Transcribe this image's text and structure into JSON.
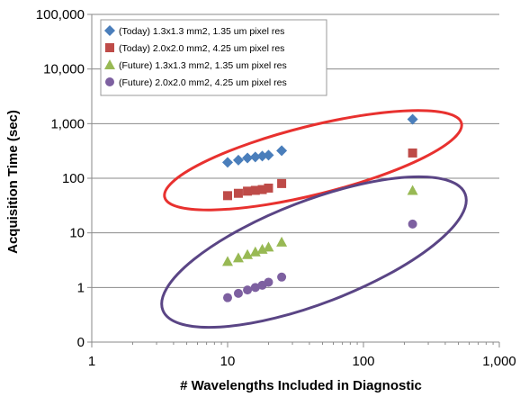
{
  "chart_data": {
    "type": "scatter",
    "xlabel": "# Wavelengths Included in Diagnostic",
    "ylabel": "Acquisition Time (sec)",
    "x_scale": "log",
    "y_scale": "log",
    "xlim": [
      1,
      1000
    ],
    "ylim": [
      0,
      100000
    ],
    "x_ticks": [
      {
        "value": 1,
        "label": "1"
      },
      {
        "value": 10,
        "label": "10"
      },
      {
        "value": 100,
        "label": "100"
      },
      {
        "value": 1000,
        "label": "1,000"
      }
    ],
    "y_ticks": [
      {
        "value": 0,
        "label": "0"
      },
      {
        "value": 1,
        "label": "1"
      },
      {
        "value": 10,
        "label": "10"
      },
      {
        "value": 100,
        "label": "100"
      },
      {
        "value": 1000,
        "label": "1,000"
      },
      {
        "value": 10000,
        "label": "10,000"
      },
      {
        "value": 100000,
        "label": "100,000"
      }
    ],
    "grid": "horizontal",
    "legend_position": "top-left",
    "series": [
      {
        "name": "(Today) 1.3x1.3 mm2, 1.35 um pixel res",
        "marker": "diamond",
        "color": "#4a7ebb",
        "x": [
          10,
          12,
          14,
          16,
          18,
          20,
          25,
          230
        ],
        "y": [
          195,
          215,
          235,
          245,
          255,
          265,
          320,
          1200
        ]
      },
      {
        "name": "(Today) 2.0x2.0 mm2, 4.25 um pixel res",
        "marker": "square",
        "color": "#be4b48",
        "x": [
          10,
          12,
          14,
          16,
          18,
          20,
          25,
          230
        ],
        "y": [
          48,
          53,
          58,
          60,
          62,
          66,
          80,
          290
        ]
      },
      {
        "name": "(Future) 1.3x1.3 mm2, 1.35 um pixel res",
        "marker": "triangle",
        "color": "#98b954",
        "x": [
          10,
          12,
          14,
          16,
          18,
          20,
          25,
          230
        ],
        "y": [
          3.0,
          3.5,
          4.0,
          4.5,
          5.0,
          5.5,
          6.8,
          60
        ]
      },
      {
        "name": "(Future) 2.0x2.0 mm2, 4.25 um pixel res",
        "marker": "circle",
        "color": "#7d60a0",
        "x": [
          10,
          12,
          14,
          16,
          18,
          20,
          25,
          230
        ],
        "y": [
          0.65,
          0.78,
          0.9,
          1.0,
          1.1,
          1.25,
          1.55,
          14.5
        ]
      }
    ],
    "ellipses": [
      {
        "color": "#e8312f",
        "encloses": [
          "(Today) 1.3x1.3 mm2, 1.35 um pixel res",
          "(Today) 2.0x2.0 mm2, 4.25 um pixel res"
        ]
      },
      {
        "color": "#5a4585",
        "encloses": [
          "(Future) 1.3x1.3 mm2, 1.35 um pixel res",
          "(Future) 2.0x2.0 mm2, 4.25 um pixel res"
        ]
      }
    ]
  }
}
